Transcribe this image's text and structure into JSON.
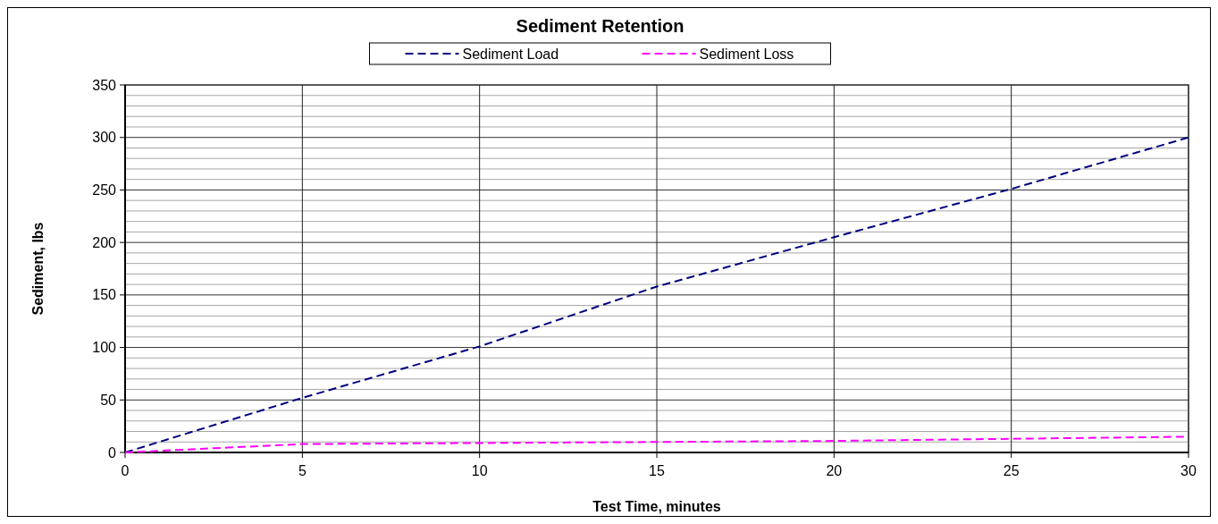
{
  "chart_data": {
    "type": "line",
    "title": "Sediment Retention",
    "xlabel": "Test Time, minutes",
    "ylabel": "Sediment, lbs",
    "x": [
      0,
      5,
      10,
      15,
      20,
      25,
      30
    ],
    "series": [
      {
        "name": "Sediment Load",
        "color": "#000080",
        "values": [
          0,
          52,
          101,
          158,
          205,
          251,
          300
        ]
      },
      {
        "name": "Sediment Loss",
        "color": "#ff00ff",
        "values": [
          0,
          8,
          9,
          10,
          11,
          13,
          15
        ]
      }
    ],
    "xlim": [
      0,
      30
    ],
    "xticks": [
      0,
      5,
      10,
      15,
      20,
      25,
      30
    ],
    "ylim": [
      0,
      350
    ],
    "yticks": [
      0,
      {
        "value": 10,
        "label": null
      },
      {
        "value": 20,
        "label": null
      },
      {
        "value": 30,
        "label": null
      },
      {
        "value": 40,
        "label": null
      },
      50,
      {
        "value": 60,
        "label": null
      },
      {
        "value": 70,
        "label": null
      },
      {
        "value": 80,
        "label": null
      },
      {
        "value": 90,
        "label": null
      },
      100,
      {
        "value": 110,
        "label": null
      },
      {
        "value": 120,
        "label": null
      },
      {
        "value": 130,
        "label": null
      },
      {
        "value": 140,
        "label": null
      },
      150,
      {
        "value": 160,
        "label": null
      },
      {
        "value": 170,
        "label": null
      },
      {
        "value": 180,
        "label": null
      },
      {
        "value": 190,
        "label": null
      },
      200,
      {
        "value": 210,
        "label": null
      },
      {
        "value": 220,
        "label": null
      },
      {
        "value": 230,
        "label": null
      },
      {
        "value": 240,
        "label": null
      },
      250,
      {
        "value": 260,
        "label": null
      },
      {
        "value": 270,
        "label": null
      },
      {
        "value": 280,
        "label": null
      },
      {
        "value": 290,
        "label": null
      },
      300,
      {
        "value": 310,
        "label": null
      },
      {
        "value": 320,
        "label": null
      },
      {
        "value": 330,
        "label": null
      },
      {
        "value": 340,
        "label": null
      },
      350
    ],
    "grid": true,
    "legend": "top",
    "line_style": "dashed",
    "marker": "none"
  }
}
